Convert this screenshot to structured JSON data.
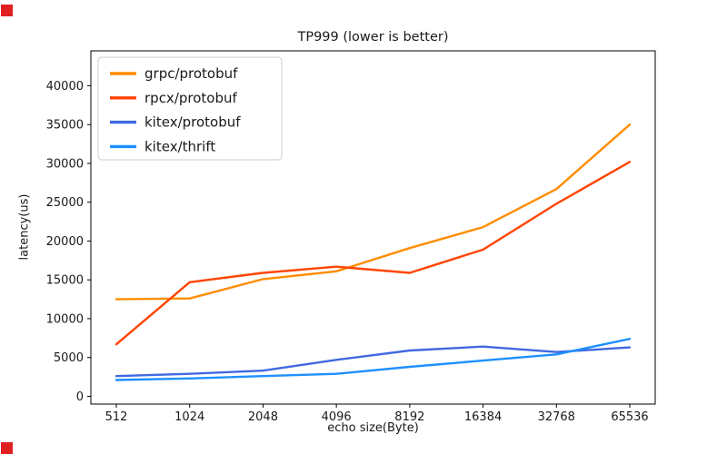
{
  "screen_markers": {
    "color": "#e02020"
  },
  "chart_data": {
    "type": "line",
    "title": "TP999 (lower is better)",
    "xlabel": "echo size(Byte)",
    "ylabel": "latency(us)",
    "x": [
      512,
      1024,
      2048,
      4096,
      8192,
      16384,
      32768,
      65536
    ],
    "x_tick_labels": [
      "512",
      "1024",
      "2048",
      "4096",
      "8192",
      "16384",
      "32768",
      "65536"
    ],
    "y_ticks": [
      0,
      5000,
      10000,
      15000,
      20000,
      25000,
      30000,
      35000,
      40000
    ],
    "y_tick_labels": [
      "0",
      "5000",
      "10000",
      "15000",
      "20000",
      "25000",
      "30000",
      "35000",
      "40000"
    ],
    "ylim": [
      -1000,
      44500
    ],
    "grid": false,
    "legend": {
      "position": "upper left"
    },
    "series": [
      {
        "name": "grpc/protobuf",
        "color": "#ff8c00",
        "values": [
          12500,
          12600,
          15100,
          16100,
          19100,
          21800,
          26700,
          35000
        ]
      },
      {
        "name": "rpcx/protobuf",
        "color": "#ff4500",
        "values": [
          6700,
          14700,
          15900,
          16700,
          15900,
          18900,
          24800,
          30200
        ]
      },
      {
        "name": "kitex/protobuf",
        "color": "#4169e1",
        "values": [
          2600,
          2900,
          3300,
          4700,
          5900,
          6400,
          5700,
          6300
        ]
      },
      {
        "name": "kitex/thrift",
        "color": "#1e90ff",
        "values": [
          2100,
          2300,
          2600,
          2900,
          3800,
          4600,
          5400,
          7400
        ]
      }
    ]
  }
}
